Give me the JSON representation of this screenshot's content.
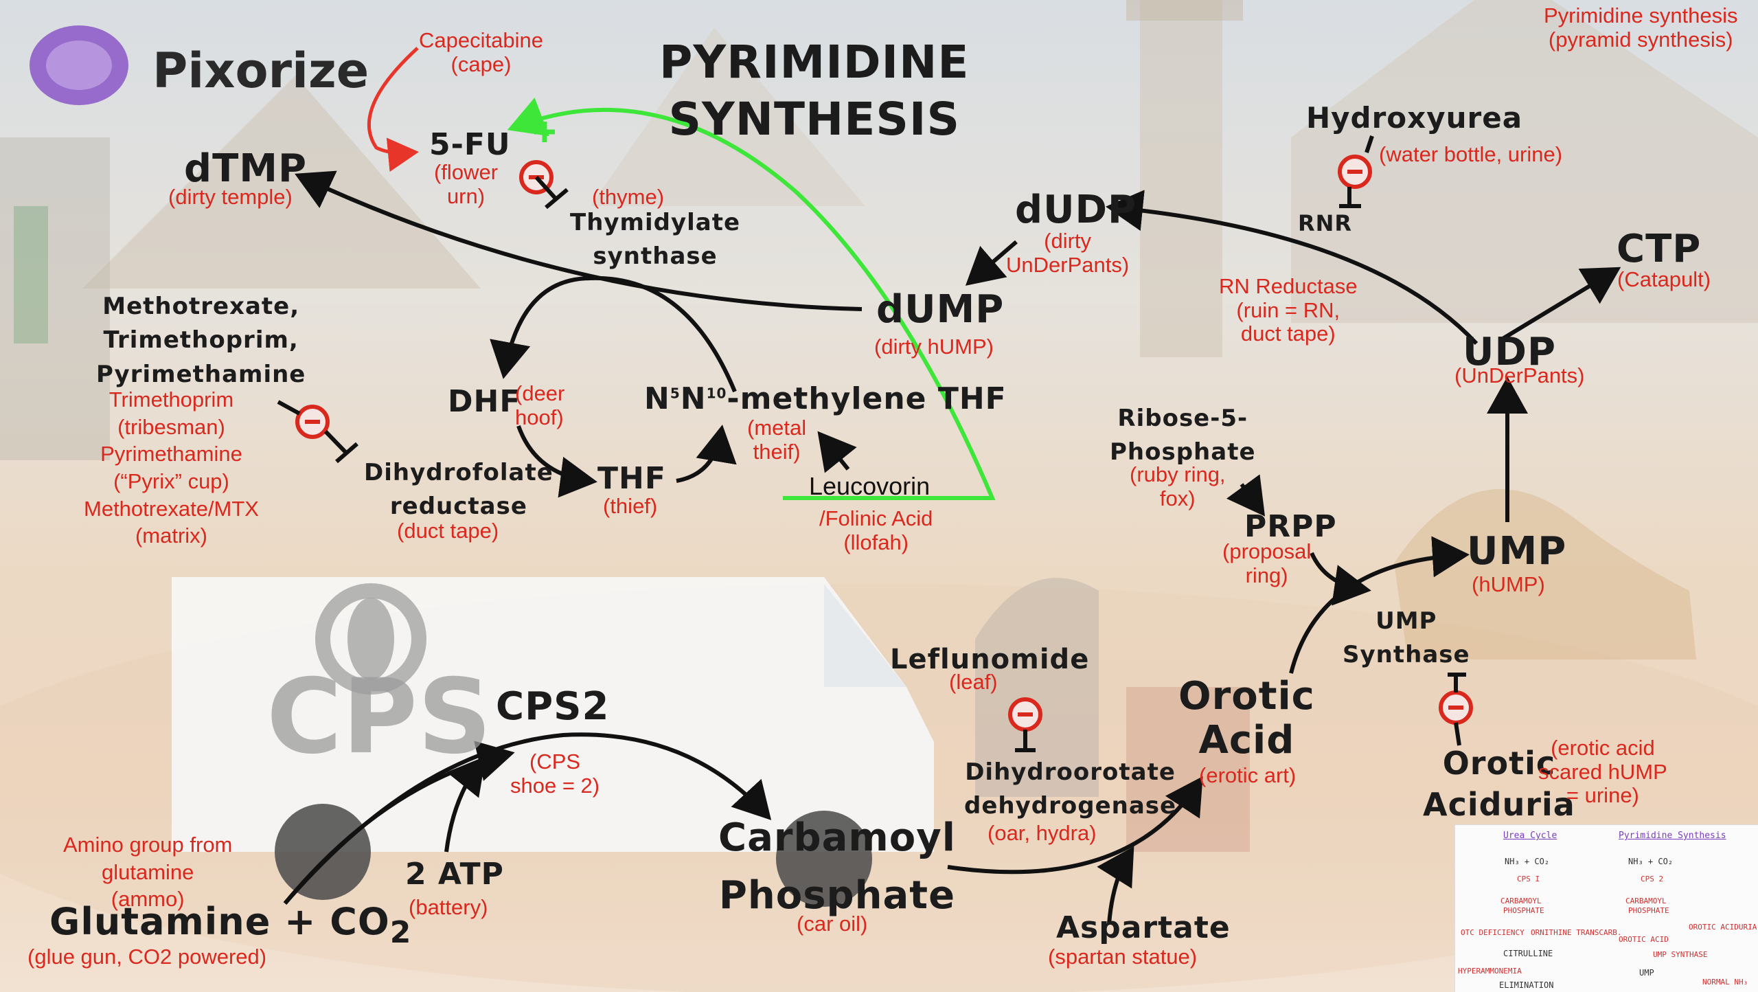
{
  "brand": {
    "name": "Pixorize"
  },
  "title": {
    "line1": "PYRIMIDINE",
    "line2": "SYNTHESIS"
  },
  "corner_note": {
    "line1": "Pyrimidine synthesis",
    "line2": "(pyramid synthesis)"
  },
  "van": {
    "logo_text": "CPS"
  },
  "nodes": {
    "capecitabine": {
      "line1": "Capecitabine",
      "line2": "(cape)"
    },
    "fiveFU": {
      "label": "5-FU",
      "note1": "(flower",
      "note2": "urn)"
    },
    "dtmp": {
      "label": "dTMP",
      "note": "(dirty temple)"
    },
    "thymidylate": {
      "note": "(thyme)",
      "line1": "Thymidylate",
      "line2": "synthase"
    },
    "dudp": {
      "label": "dUDP",
      "note1": "(dirty",
      "note2": "UnDerPants)"
    },
    "dump": {
      "label": "dUMP",
      "note": "(dirty hUMP)"
    },
    "hydroxyurea": {
      "label": "Hydroxyurea",
      "note": "(water bottle, urine)"
    },
    "rnr": {
      "label": "RNR"
    },
    "rn_reductase": {
      "line1": "RN Reductase",
      "line2": "(ruin = RN,",
      "line3": "duct tape)"
    },
    "ctp": {
      "label": "CTP",
      "note": "(Catapult)"
    },
    "udp": {
      "label": "UDP",
      "note": "(UnDerPants)"
    },
    "inhibitors": {
      "line1": "Methotrexate,",
      "line2": "Trimethoprim,",
      "line3": "Pyrimethamine"
    },
    "inhibitor_notes": {
      "line1": "Trimethoprim",
      "line2": "(tribesman)",
      "line3": "Pyrimethamine",
      "line4": "(“Pyrix” cup)",
      "line5": "Methotrexate/MTX",
      "line6": "(matrix)"
    },
    "dhf": {
      "label": "DHF",
      "note1": "(deer",
      "note2": "hoof)"
    },
    "methylene_thf": {
      "label_pre": "N",
      "sup1": "5",
      "label_mid": "N",
      "sup2": "10",
      "label_post": "-methylene THF",
      "note1": "(metal",
      "note2": "theif)"
    },
    "thf": {
      "label": "THF",
      "note": "(thief)"
    },
    "dhfr": {
      "line1": "Dihydrofolate",
      "line2": "reductase",
      "note": "(duct tape)"
    },
    "leucovorin": {
      "label": "Leucovorin",
      "note1": "/Folinic Acid",
      "note2": "(llofah)"
    },
    "ribose": {
      "line1": "Ribose-5-",
      "line2": "Phosphate",
      "note1": "(ruby ring,",
      "note2": "fox)"
    },
    "prpp": {
      "label": "PRPP",
      "note1": "(proposal",
      "note2": "ring)"
    },
    "ump": {
      "label": "UMP",
      "note": "(hUMP)"
    },
    "ump_synthase": {
      "line1": "UMP",
      "line2": "Synthase"
    },
    "orotic_acid": {
      "line1": "Orotic",
      "line2": "Acid",
      "note": "(erotic art)"
    },
    "orotic_aciduria": {
      "line1": "Orotic",
      "line2": "Aciduria",
      "note1": "(erotic acid",
      "note2": "scared hUMP",
      "note3": "= urine)"
    },
    "leflunomide": {
      "label": "Leflunomide",
      "note": "(leaf)"
    },
    "dhodh": {
      "line1": "Dihydroorotate",
      "line2": "dehydrogenase",
      "note": "(oar, hydra)"
    },
    "cps2": {
      "label": "CPS2",
      "note1": "(CPS",
      "note2": "shoe = 2)"
    },
    "atp": {
      "label": "2 ATP",
      "note": "(battery)"
    },
    "carbamoyl": {
      "line1": "Carbamoyl",
      "line2": "Phosphate",
      "note": "(car oil)"
    },
    "aspartate": {
      "label": "Aspartate",
      "note": "(spartan statue)"
    },
    "amino": {
      "line1": "Amino group from",
      "line2": "glutamine",
      "line3": "(ammo)"
    },
    "glutamine": {
      "label_pre": "Glutamine + CO",
      "sub": "2",
      "note": "(glue gun, CO2 powered)"
    }
  },
  "symbols": {
    "inhibit": "−",
    "activate": "+"
  },
  "colors": {
    "annotation": "#d9281e",
    "label": "#1c1c1c",
    "arrow": "#111111",
    "leucovorin_arrow": "#3ee63a",
    "capecitabine_arrow": "#e8352a"
  },
  "thumbnail": {
    "left_title": "Urea Cycle",
    "right_title": "Pyrimidine Synthesis",
    "l1": "NH₃ + CO₂",
    "l2": "CPS I",
    "l3": "CARBAMOYL",
    "l4": "PHOSPHATE",
    "l5": "OTC DEFICIENCY",
    "l6": "ORNITHINE TRANSCARB.",
    "l7": "CITRULLINE",
    "l8": "HYPERAMMONEMIA",
    "l9": "ELIMINATION",
    "r1": "NH₃ + CO₂",
    "r2": "CPS 2",
    "r3": "CARBAMOYL",
    "r4": "PHOSPHATE",
    "r5": "OROTIC ACID",
    "r6": "OROTIC ACIDURIA",
    "r7": "UMP SYNTHASE",
    "r8": "UMP",
    "r9": "NORMAL NH₃"
  }
}
